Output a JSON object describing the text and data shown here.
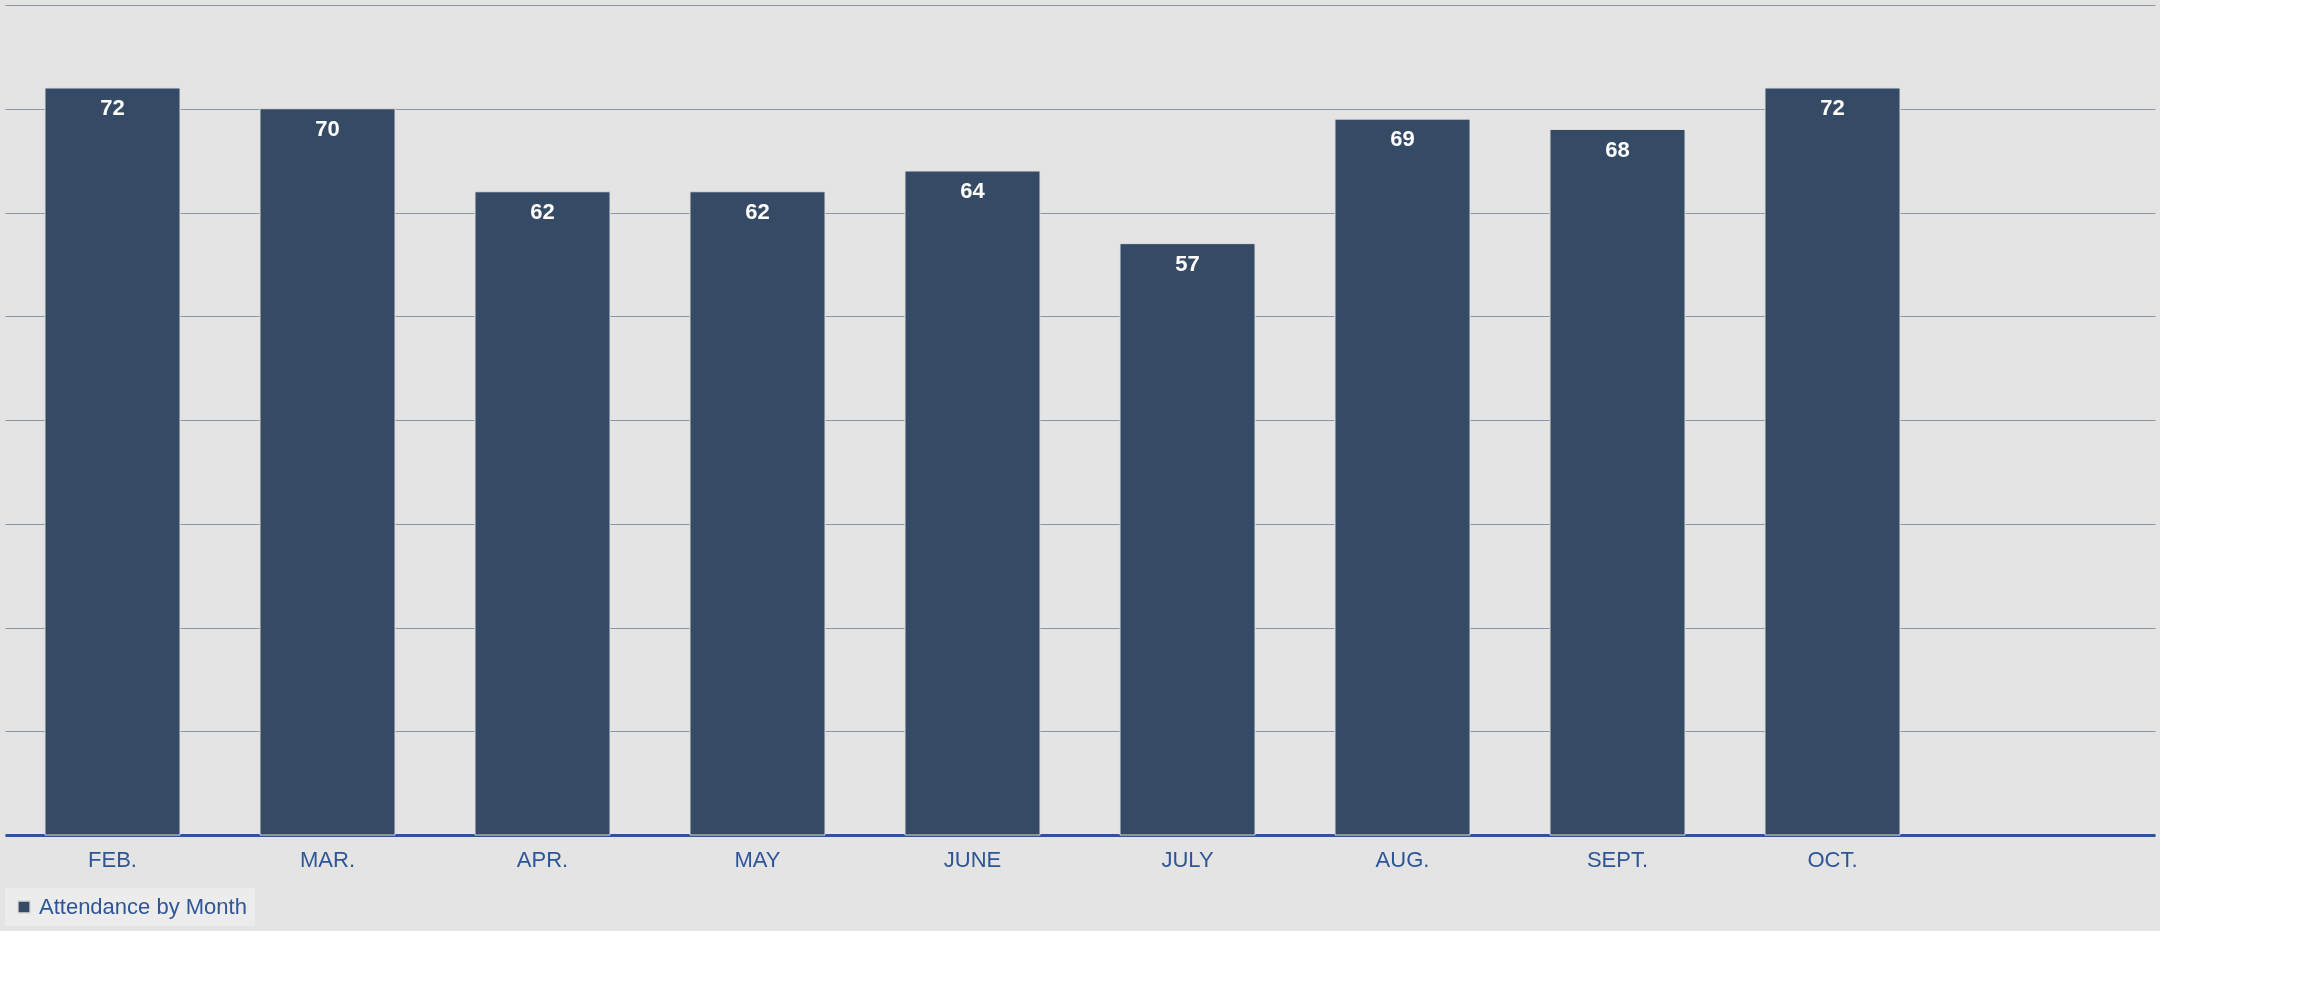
{
  "chart_data": {
    "type": "bar",
    "categories": [
      "FEB.",
      "MAR.",
      "APR.",
      "MAY",
      "JUNE",
      "JULY",
      "AUG.",
      "SEPT.",
      "OCT.",
      null
    ],
    "series": [
      {
        "name": "Attendance by Month",
        "color": "#354a64",
        "values": [
          72,
          70,
          62,
          62,
          64,
          57,
          69,
          68,
          72,
          null
        ]
      }
    ],
    "ylim": [
      0,
      80
    ],
    "yticks": [
      {
        "value": 0,
        "label": null
      },
      {
        "value": 10,
        "label": null
      },
      {
        "value": 20,
        "label": null
      },
      {
        "value": 30,
        "label": null
      },
      {
        "value": 40,
        "label": null
      },
      {
        "value": 50,
        "label": null
      },
      {
        "value": 60,
        "label": null
      },
      {
        "value": 70,
        "label": null
      },
      {
        "value": 80,
        "label": null
      }
    ],
    "tick_labels": "x",
    "grid": "y",
    "legend": "bottom",
    "data_labels": true
  }
}
